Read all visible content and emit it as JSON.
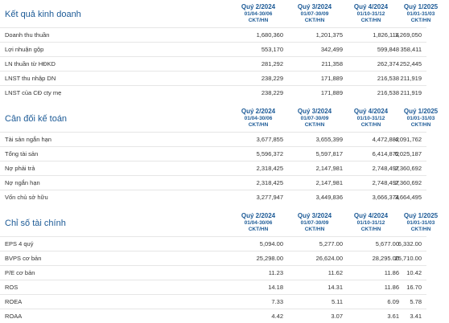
{
  "sections": [
    {
      "title": "Kết quả kinh doanh",
      "columns": [
        {
          "quarter": "Quý 2/2024",
          "dates": "01/04-30/06",
          "unit": "CKT/HN"
        },
        {
          "quarter": "Quý 3/2024",
          "dates": "01/07-30/09",
          "unit": "CKT/HN"
        },
        {
          "quarter": "Quý 4/2024",
          "dates": "01/10-31/12",
          "unit": "CKT/HN"
        },
        {
          "quarter": "Quý 1/2025",
          "dates": "01/01-31/03",
          "unit": "CKT/HN"
        }
      ],
      "rows": [
        {
          "label": "Doanh thu thuần",
          "values": [
            "1,680,360",
            "1,201,375",
            "1,826,114",
            "1,269,050"
          ]
        },
        {
          "label": "Lợi nhuận gộp",
          "values": [
            "553,170",
            "342,499",
            "599,848",
            "358,411"
          ]
        },
        {
          "label": "LN thuần từ HĐKD",
          "values": [
            "281,292",
            "211,358",
            "262,374",
            "252,445"
          ]
        },
        {
          "label": "LNST thu nhập DN",
          "values": [
            "238,229",
            "171,889",
            "216,538",
            "211,919"
          ]
        },
        {
          "label": "LNST của CĐ cty mẹ",
          "values": [
            "238,229",
            "171,889",
            "216,538",
            "211,919"
          ]
        }
      ]
    },
    {
      "title": "Cân đối kế toán",
      "columns": [
        {
          "quarter": "Quý 2/2024",
          "dates": "01/04-30/06",
          "unit": "CKT/HN"
        },
        {
          "quarter": "Quý 3/2024",
          "dates": "01/07-30/09",
          "unit": "CKT/HN"
        },
        {
          "quarter": "Quý 4/2024",
          "dates": "01/10-31/12",
          "unit": "CKT/HN"
        },
        {
          "quarter": "Quý 1/2025",
          "dates": "01/01-31/03",
          "unit": "CKT/HN"
        }
      ],
      "rows": [
        {
          "label": "Tài sản ngắn hạn",
          "values": [
            "3,677,855",
            "3,655,399",
            "4,472,882",
            "4,091,762"
          ]
        },
        {
          "label": "Tổng tài sản",
          "values": [
            "5,596,372",
            "5,597,817",
            "6,414,872",
            "6,025,187"
          ]
        },
        {
          "label": "Nợ phải trả",
          "values": [
            "2,318,425",
            "2,147,981",
            "2,748,497",
            "2,360,692"
          ]
        },
        {
          "label": "Nợ ngắn hạn",
          "values": [
            "2,318,425",
            "2,147,981",
            "2,748,497",
            "2,360,692"
          ]
        },
        {
          "label": "Vốn chủ sở hữu",
          "values": [
            "3,277,947",
            "3,449,836",
            "3,666,374",
            "3,664,495"
          ]
        }
      ]
    },
    {
      "title": "Chỉ số tài chính",
      "columns": [
        {
          "quarter": "Quý 2/2024",
          "dates": "01/04-30/06",
          "unit": "CKT/HN"
        },
        {
          "quarter": "Quý 3/2024",
          "dates": "01/07-30/09",
          "unit": "CKT/HN"
        },
        {
          "quarter": "Quý 4/2024",
          "dates": "01/10-31/12",
          "unit": "CKT/HN"
        },
        {
          "quarter": "Quý 1/2025",
          "dates": "01/01-31/03",
          "unit": "CKT/HN"
        }
      ],
      "rows": [
        {
          "label": "EPS 4 quý",
          "values": [
            "5,094.00",
            "5,277.00",
            "5,677.00",
            "6,332.00"
          ]
        },
        {
          "label": "BVPS cơ bản",
          "values": [
            "25,298.00",
            "26,624.00",
            "28,295.00",
            "25,710.00"
          ]
        },
        {
          "label": "P/E cơ bản",
          "values": [
            "11.23",
            "11.62",
            "11.86",
            "10.42"
          ]
        },
        {
          "label": "ROS",
          "values": [
            "14.18",
            "14.31",
            "11.86",
            "16.70"
          ]
        },
        {
          "label": "ROEA",
          "values": [
            "7.33",
            "5.11",
            "6.09",
            "5.78"
          ]
        },
        {
          "label": "ROAA",
          "values": [
            "4.42",
            "3.07",
            "3.61",
            "3.41"
          ]
        }
      ]
    }
  ]
}
